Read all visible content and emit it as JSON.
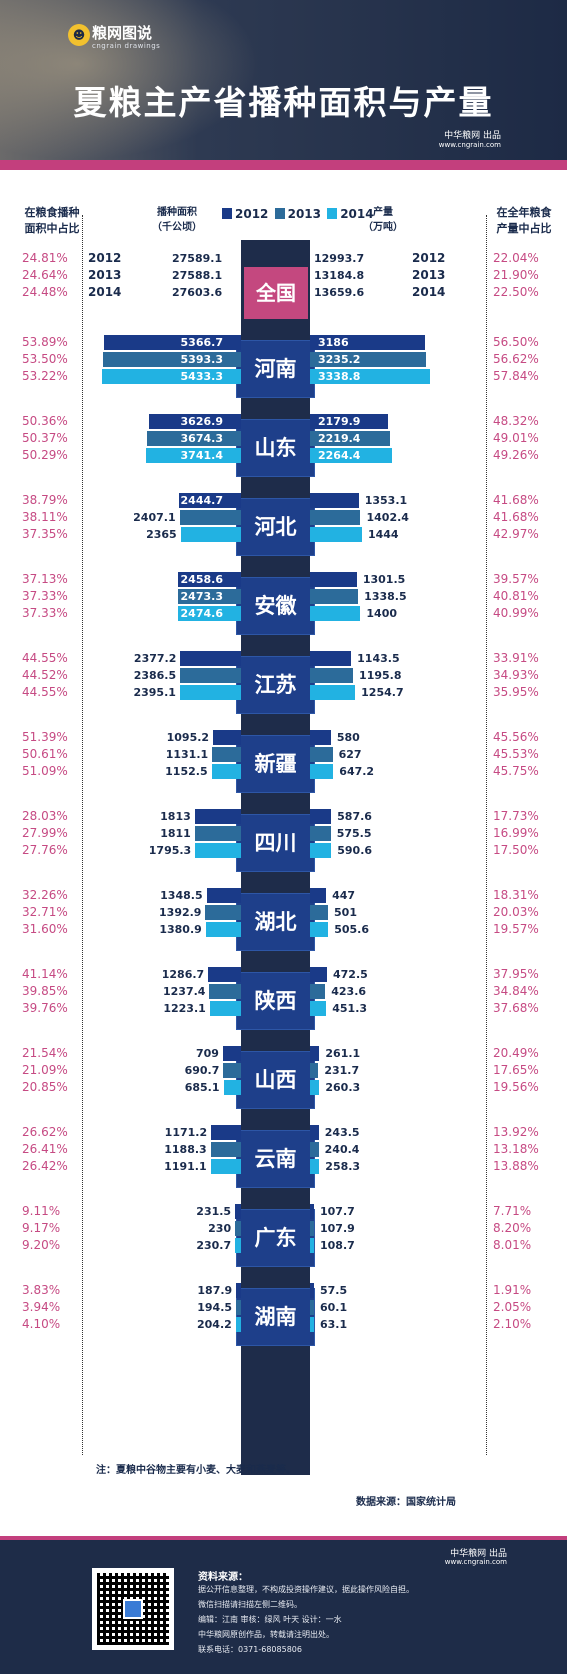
{
  "header": {
    "logo_text": "粮网图说",
    "logo_sub": "cngrain drawings",
    "title": "夏粮主产省播种面积与产量",
    "publisher": "中华粮网  出品",
    "url": "www.cngrain.com"
  },
  "column_headers": {
    "left_pct_line1": "在粮食播种",
    "left_pct_line2": "面积中占比",
    "area_line1": "播种面积",
    "area_line2": "（千公顷）",
    "prod_line1": "产量",
    "prod_line2": "（万吨）",
    "right_pct_line1": "在全年粮食",
    "right_pct_line2": "产量中占比"
  },
  "colors": {
    "2012": "#1a3a88",
    "2013": "#2c6b9a",
    "2014": "#22b2e2",
    "spine": "#1e2c4a",
    "total_box": "#c4487f",
    "pct_text": "#c64a83"
  },
  "chart_data": {
    "type": "bar",
    "years": [
      "2012",
      "2013",
      "2014"
    ],
    "legend": [
      "2012",
      "2013",
      "2014"
    ],
    "total": {
      "name": "全国",
      "area": [
        "27589.1",
        "27588.1",
        "27603.6"
      ],
      "production": [
        "12993.7",
        "13184.8",
        "13659.6"
      ],
      "area_share": [
        "24.81%",
        "24.64%",
        "24.48%"
      ],
      "production_share": [
        "22.04%",
        "21.90%",
        "22.50%"
      ]
    },
    "provinces": [
      {
        "name": "河南",
        "area": [
          "5366.7",
          "5393.3",
          "5433.3"
        ],
        "production": [
          "3186",
          "3235.2",
          "3338.8"
        ],
        "area_share": [
          "53.89%",
          "53.50%",
          "53.22%"
        ],
        "production_share": [
          "56.50%",
          "56.62%",
          "57.84%"
        ]
      },
      {
        "name": "山东",
        "area": [
          "3626.9",
          "3674.3",
          "3741.4"
        ],
        "production": [
          "2179.9",
          "2219.4",
          "2264.4"
        ],
        "area_share": [
          "50.36%",
          "50.37%",
          "50.29%"
        ],
        "production_share": [
          "48.32%",
          "49.01%",
          "49.26%"
        ]
      },
      {
        "name": "河北",
        "area": [
          "2444.7",
          "2407.1",
          "2365"
        ],
        "production": [
          "1353.1",
          "1402.4",
          "1444"
        ],
        "area_share": [
          "38.79%",
          "38.11%",
          "37.35%"
        ],
        "production_share": [
          "41.68%",
          "41.68%",
          "42.97%"
        ]
      },
      {
        "name": "安徽",
        "area": [
          "2458.6",
          "2473.3",
          "2474.6"
        ],
        "production": [
          "1301.5",
          "1338.5",
          "1400"
        ],
        "area_share": [
          "37.13%",
          "37.33%",
          "37.33%"
        ],
        "production_share": [
          "39.57%",
          "40.81%",
          "40.99%"
        ]
      },
      {
        "name": "江苏",
        "area": [
          "2377.2",
          "2386.5",
          "2395.1"
        ],
        "production": [
          "1143.5",
          "1195.8",
          "1254.7"
        ],
        "area_share": [
          "44.55%",
          "44.52%",
          "44.55%"
        ],
        "production_share": [
          "33.91%",
          "34.93%",
          "35.95%"
        ]
      },
      {
        "name": "新疆",
        "area": [
          "1095.2",
          "1131.1",
          "1152.5"
        ],
        "production": [
          "580",
          "627",
          "647.2"
        ],
        "area_share": [
          "51.39%",
          "50.61%",
          "51.09%"
        ],
        "production_share": [
          "45.56%",
          "45.53%",
          "45.75%"
        ]
      },
      {
        "name": "四川",
        "area": [
          "1813",
          "1811",
          "1795.3"
        ],
        "production": [
          "587.6",
          "575.5",
          "590.6"
        ],
        "area_share": [
          "28.03%",
          "27.99%",
          "27.76%"
        ],
        "production_share": [
          "17.73%",
          "16.99%",
          "17.50%"
        ]
      },
      {
        "name": "湖北",
        "area": [
          "1348.5",
          "1392.9",
          "1380.9"
        ],
        "production": [
          "447",
          "501",
          "505.6"
        ],
        "area_share": [
          "32.26%",
          "32.71%",
          "31.60%"
        ],
        "production_share": [
          "18.31%",
          "20.03%",
          "19.57%"
        ]
      },
      {
        "name": "陕西",
        "area": [
          "1286.7",
          "1237.4",
          "1223.1"
        ],
        "production": [
          "472.5",
          "423.6",
          "451.3"
        ],
        "area_share": [
          "41.14%",
          "39.85%",
          "39.76%"
        ],
        "production_share": [
          "37.95%",
          "34.84%",
          "37.68%"
        ]
      },
      {
        "name": "山西",
        "area": [
          "709",
          "690.7",
          "685.1"
        ],
        "production": [
          "261.1",
          "231.7",
          "260.3"
        ],
        "area_share": [
          "21.54%",
          "21.09%",
          "20.85%"
        ],
        "production_share": [
          "20.49%",
          "17.65%",
          "19.56%"
        ]
      },
      {
        "name": "云南",
        "area": [
          "1171.2",
          "1188.3",
          "1191.1"
        ],
        "production": [
          "243.5",
          "240.4",
          "258.3"
        ],
        "area_share": [
          "26.62%",
          "26.41%",
          "26.42%"
        ],
        "production_share": [
          "13.92%",
          "13.18%",
          "13.88%"
        ]
      },
      {
        "name": "广东",
        "area": [
          "231.5",
          "230",
          "230.7"
        ],
        "production": [
          "107.7",
          "107.9",
          "108.7"
        ],
        "area_share": [
          "9.11%",
          "9.17%",
          "9.20%"
        ],
        "production_share": [
          "7.71%",
          "8.20%",
          "8.01%"
        ]
      },
      {
        "name": "湖南",
        "area": [
          "187.9",
          "194.5",
          "204.2"
        ],
        "production": [
          "57.5",
          "60.1",
          "63.1"
        ],
        "area_share": [
          "3.83%",
          "3.94%",
          "4.10%"
        ],
        "production_share": [
          "1.91%",
          "2.05%",
          "2.10%"
        ]
      }
    ]
  },
  "note": "注：夏粮中谷物主要有小麦、大麦和燕麦等。",
  "source": "数据来源：国家统计局",
  "footer": {
    "publisher": "中华粮网  出品",
    "url": "www.cngrain.com",
    "heading": "资料来源：",
    "lines": [
      "据公开信息整理，不构成投资操作建议，据此操作风险自担。",
      "微信扫描请扫描左侧二维码。",
      "编辑：江南   审核：绿风  叶天    设计：一水",
      "中华粮网原创作品，转载请注明出处。",
      "联系电话：0371-68085806"
    ]
  }
}
